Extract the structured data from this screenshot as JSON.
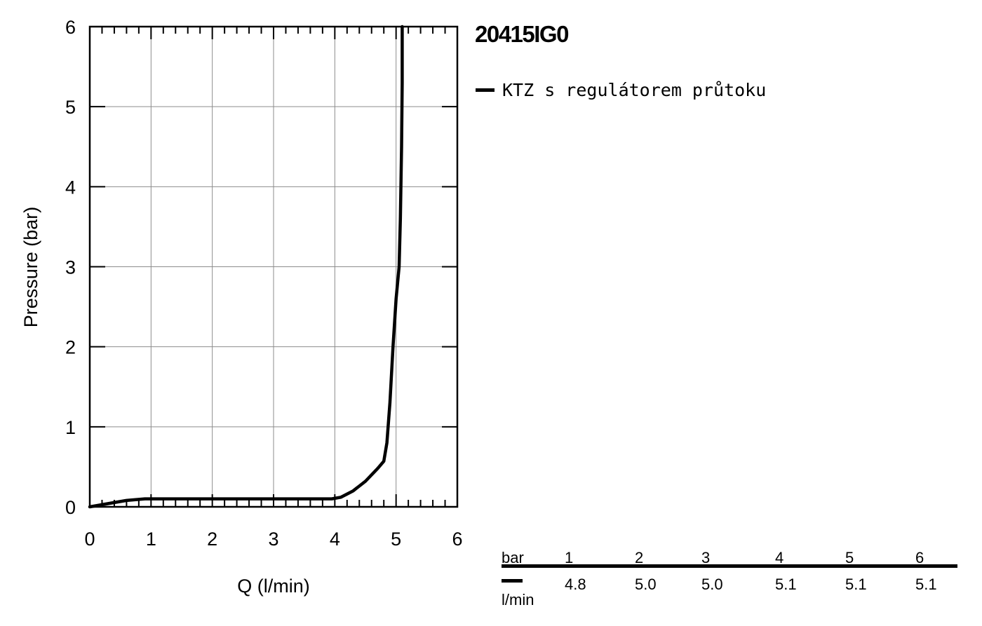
{
  "chart_data": {
    "type": "line",
    "title": "20415IG0",
    "xlabel": "Q (l/min)",
    "ylabel": "Pressure (bar)",
    "xlim": [
      0,
      6
    ],
    "ylim": [
      0,
      6
    ],
    "xticks": [
      "0",
      "1",
      "2",
      "3",
      "4",
      "5",
      "6"
    ],
    "yticks": [
      "0",
      "1",
      "2",
      "3",
      "4",
      "5",
      "6"
    ],
    "grid": true,
    "legend_position": "right",
    "series": [
      {
        "name": "KTZ s regulátorem průtoku",
        "color": "#000000",
        "points": [
          [
            0,
            0
          ],
          [
            0.3,
            0.04
          ],
          [
            0.6,
            0.08
          ],
          [
            0.9,
            0.1
          ],
          [
            1.5,
            0.1
          ],
          [
            2.5,
            0.1
          ],
          [
            3.5,
            0.1
          ],
          [
            3.95,
            0.1
          ],
          [
            4.1,
            0.12
          ],
          [
            4.3,
            0.2
          ],
          [
            4.5,
            0.32
          ],
          [
            4.7,
            0.48
          ],
          [
            4.8,
            0.57
          ],
          [
            4.85,
            0.8
          ],
          [
            4.9,
            1.3
          ],
          [
            4.95,
            2.0
          ],
          [
            5.0,
            2.6
          ],
          [
            5.05,
            3.0
          ],
          [
            5.07,
            3.6
          ],
          [
            5.09,
            4.5
          ],
          [
            5.1,
            5.3
          ],
          [
            5.1,
            6.0
          ]
        ]
      }
    ]
  },
  "table": {
    "pressure_label": "bar",
    "flow_label": "l/min",
    "pressures": [
      "1",
      "2",
      "3",
      "4",
      "5",
      "6"
    ],
    "flows": [
      "4.8",
      "5.0",
      "5.0",
      "5.1",
      "5.1",
      "5.1"
    ]
  }
}
